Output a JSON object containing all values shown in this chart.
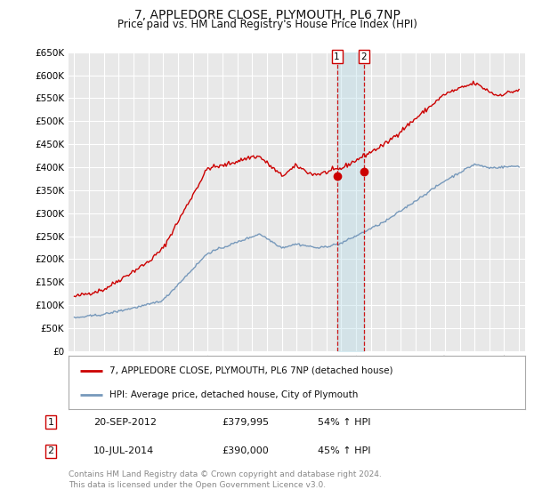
{
  "title": "7, APPLEDORE CLOSE, PLYMOUTH, PL6 7NP",
  "subtitle": "Price paid vs. HM Land Registry's House Price Index (HPI)",
  "background_color": "#ffffff",
  "plot_bg_color": "#e8e8e8",
  "grid_color": "#ffffff",
  "red_line_color": "#cc0000",
  "blue_line_color": "#7799bb",
  "ylim": [
    0,
    650000
  ],
  "yticks": [
    0,
    50000,
    100000,
    150000,
    200000,
    250000,
    300000,
    350000,
    400000,
    450000,
    500000,
    550000,
    600000,
    650000
  ],
  "xlim_start": 1994.6,
  "xlim_end": 2025.4,
  "sale1": {
    "date_num": 2012.72,
    "price": 379995,
    "label": "1"
  },
  "sale2": {
    "date_num": 2014.52,
    "price": 390000,
    "label": "2"
  },
  "legend_label_red": "7, APPLEDORE CLOSE, PLYMOUTH, PL6 7NP (detached house)",
  "legend_label_blue": "HPI: Average price, detached house, City of Plymouth",
  "table_entries": [
    {
      "num": "1",
      "date": "20-SEP-2012",
      "price": "£379,995",
      "change": "54% ↑ HPI"
    },
    {
      "num": "2",
      "date": "10-JUL-2014",
      "price": "£390,000",
      "change": "45% ↑ HPI"
    }
  ],
  "footnote1": "Contains HM Land Registry data © Crown copyright and database right 2024.",
  "footnote2": "This data is licensed under the Open Government Licence v3.0."
}
